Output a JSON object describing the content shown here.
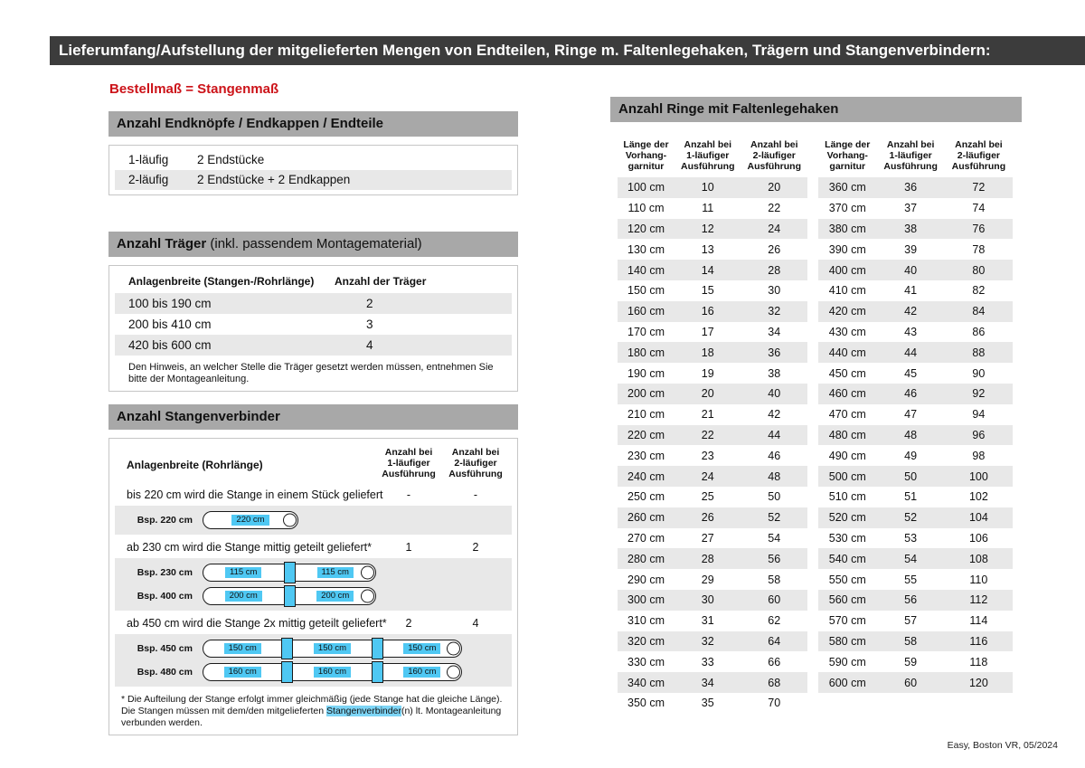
{
  "header": {
    "title": "Lieferumfang/Aufstellung der mitgelieferten Mengen von Endteilen, Ringe m. Faltenlegehaken, Trägern und Stangenverbindern:"
  },
  "subtitle": "Bestellmaß = Stangenmaß",
  "colors": {
    "header_bar": "#3c3c3c",
    "section_bar": "#a8a8a8",
    "row_alt": "#e8e8e8",
    "accent_red": "#cc1319",
    "accent_cyan": "#4fc8f3"
  },
  "endteile": {
    "title": "Anzahl Endknöpfe / Endkappen / Endteile",
    "rows": [
      {
        "label": "1-läufig",
        "value": "2 Endstücke"
      },
      {
        "label": "2-läufig",
        "value": "2 Endstücke + 2 Endkappen"
      }
    ]
  },
  "traeger": {
    "title_bold": "Anzahl Träger",
    "title_rest": " (inkl. passendem Montagematerial)",
    "col_width": "Anlagenbreite (Stangen-/Rohrlänge)",
    "col_count": "Anzahl der Träger",
    "rows": [
      {
        "range": "100 bis 190 cm",
        "count": "2"
      },
      {
        "range": "200 bis 410 cm",
        "count": "3"
      },
      {
        "range": "420 bis 600 cm",
        "count": "4"
      }
    ],
    "note": "Den Hinweis, an welcher Stelle die Träger gesetzt werden müssen, entnehmen Sie bitte der Montageanleitung."
  },
  "verbinder": {
    "title": "Anzahl Stangenverbinder",
    "col_width": "Anlagenbreite (Rohrlänge)",
    "col_one": [
      "Anzahl bei",
      "1-läufiger",
      "Ausführung"
    ],
    "col_two": [
      "Anzahl bei",
      "2-läufiger",
      "Ausführung"
    ],
    "sections": [
      {
        "text": "bis 220 cm wird die Stange in einem Stück geliefert",
        "count1": "-",
        "count2": "-",
        "examples": [
          {
            "label": "Bsp. 220 cm",
            "segments": [
              "220 cm"
            ]
          }
        ]
      },
      {
        "text": "ab 230 cm wird die Stange mittig geteilt geliefert*",
        "count1": "1",
        "count2": "2",
        "examples": [
          {
            "label": "Bsp. 230 cm",
            "segments": [
              "115 cm",
              "115 cm"
            ]
          },
          {
            "label": "Bsp. 400 cm",
            "segments": [
              "200 cm",
              "200 cm"
            ]
          }
        ]
      },
      {
        "text": "ab 450 cm wird die Stange 2x mittig geteilt geliefert*",
        "count1": "2",
        "count2": "4",
        "examples": [
          {
            "label": "Bsp. 450 cm",
            "segments": [
              "150 cm",
              "150 cm",
              "150 cm"
            ]
          },
          {
            "label": "Bsp. 480 cm",
            "segments": [
              "160 cm",
              "160 cm",
              "160 cm"
            ]
          }
        ]
      }
    ],
    "footnote": {
      "pre": "* Die Aufteilung der Stange erfolgt immer gleichmäßig (jede Stange hat die gleiche Länge). Die Stangen müssen mit dem/den mitgelieferten ",
      "highlight": "Stangenverbinder",
      "post": "(n) lt. Montageanleitung verbunden werden."
    }
  },
  "ringe": {
    "title": "Anzahl Ringe mit Faltenlegehaken",
    "col_length": [
      "Länge der",
      "Vorhang-",
      "garnitur"
    ],
    "col_one": [
      "Anzahl bei",
      "1-läufiger",
      "Ausführung"
    ],
    "col_two": [
      "Anzahl bei",
      "2-läufiger",
      "Ausführung"
    ],
    "table_left": [
      [
        "100 cm",
        "10",
        "20"
      ],
      [
        "110 cm",
        "11",
        "22"
      ],
      [
        "120 cm",
        "12",
        "24"
      ],
      [
        "130 cm",
        "13",
        "26"
      ],
      [
        "140 cm",
        "14",
        "28"
      ],
      [
        "150 cm",
        "15",
        "30"
      ],
      [
        "160 cm",
        "16",
        "32"
      ],
      [
        "170 cm",
        "17",
        "34"
      ],
      [
        "180 cm",
        "18",
        "36"
      ],
      [
        "190 cm",
        "19",
        "38"
      ],
      [
        "200 cm",
        "20",
        "40"
      ],
      [
        "210 cm",
        "21",
        "42"
      ],
      [
        "220 cm",
        "22",
        "44"
      ],
      [
        "230 cm",
        "23",
        "46"
      ],
      [
        "240 cm",
        "24",
        "48"
      ],
      [
        "250 cm",
        "25",
        "50"
      ],
      [
        "260 cm",
        "26",
        "52"
      ],
      [
        "270 cm",
        "27",
        "54"
      ],
      [
        "280 cm",
        "28",
        "56"
      ],
      [
        "290 cm",
        "29",
        "58"
      ],
      [
        "300 cm",
        "30",
        "60"
      ],
      [
        "310 cm",
        "31",
        "62"
      ],
      [
        "320 cm",
        "32",
        "64"
      ],
      [
        "330 cm",
        "33",
        "66"
      ],
      [
        "340 cm",
        "34",
        "68"
      ],
      [
        "350 cm",
        "35",
        "70"
      ]
    ],
    "table_right": [
      [
        "360 cm",
        "36",
        "72"
      ],
      [
        "370 cm",
        "37",
        "74"
      ],
      [
        "380 cm",
        "38",
        "76"
      ],
      [
        "390 cm",
        "39",
        "78"
      ],
      [
        "400 cm",
        "40",
        "80"
      ],
      [
        "410 cm",
        "41",
        "82"
      ],
      [
        "420 cm",
        "42",
        "84"
      ],
      [
        "430 cm",
        "43",
        "86"
      ],
      [
        "440 cm",
        "44",
        "88"
      ],
      [
        "450 cm",
        "45",
        "90"
      ],
      [
        "460 cm",
        "46",
        "92"
      ],
      [
        "470 cm",
        "47",
        "94"
      ],
      [
        "480 cm",
        "48",
        "96"
      ],
      [
        "490 cm",
        "49",
        "98"
      ],
      [
        "500 cm",
        "50",
        "100"
      ],
      [
        "510 cm",
        "51",
        "102"
      ],
      [
        "520 cm",
        "52",
        "104"
      ],
      [
        "530 cm",
        "53",
        "106"
      ],
      [
        "540 cm",
        "54",
        "108"
      ],
      [
        "550 cm",
        "55",
        "110"
      ],
      [
        "560 cm",
        "56",
        "112"
      ],
      [
        "570 cm",
        "57",
        "114"
      ],
      [
        "580 cm",
        "58",
        "116"
      ],
      [
        "590 cm",
        "59",
        "118"
      ],
      [
        "600 cm",
        "60",
        "120"
      ]
    ]
  },
  "footer": "Easy, Boston VR, 05/2024"
}
